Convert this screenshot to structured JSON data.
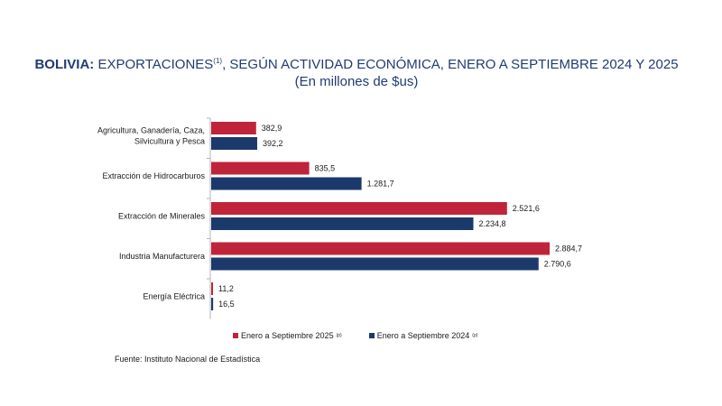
{
  "header": {
    "title_bold": "BOLIVIA:",
    "title_rest": " EXPORTACIONES",
    "title_sup": "(1)",
    "title_tail": ", SEGÚN ACTIVIDAD ECONÓMICA, ENERO A SEPTIEMBRE 2024 Y 2025",
    "subtitle": "(En millones de $us)"
  },
  "chart_data": {
    "type": "bar",
    "orientation": "horizontal",
    "title": "BOLIVIA: EXPORTACIONES(1), SEGÚN ACTIVIDAD ECONÓMICA, ENERO A SEPTIEMBRE 2024 Y 2025",
    "subtitle": "(En millones de $us)",
    "categories": [
      [
        "Agricultura, Ganadería, Caza,",
        "Silvicultura y Pesca"
      ],
      [
        "Extracción de Hidrocarburos"
      ],
      [
        "Extracción de Minerales"
      ],
      [
        "Industria Manufacturera"
      ],
      [
        "Energía Eléctrica"
      ]
    ],
    "series": [
      {
        "name": "Enero a Septiembre  2025",
        "sup": "(p)",
        "color": "#c0243a",
        "values": [
          382.9,
          835.5,
          2521.6,
          2884.7,
          11.2
        ],
        "labels": [
          "382,9",
          "835,5",
          "2.521,6",
          "2.884,7",
          "11,2"
        ]
      },
      {
        "name": "Enero a Septiembre 2024",
        "sup": "(p)",
        "color": "#1b3a6b",
        "values": [
          392.2,
          1281.7,
          2234.8,
          2790.6,
          16.5
        ],
        "labels": [
          "392,2",
          "1.281,7",
          "2.234,8",
          "2.790,6",
          "16,5"
        ]
      }
    ],
    "xlim": [
      0,
      3000
    ],
    "legend_position": "bottom"
  },
  "source": "Fuente: Instituto Nacional de Estadística"
}
